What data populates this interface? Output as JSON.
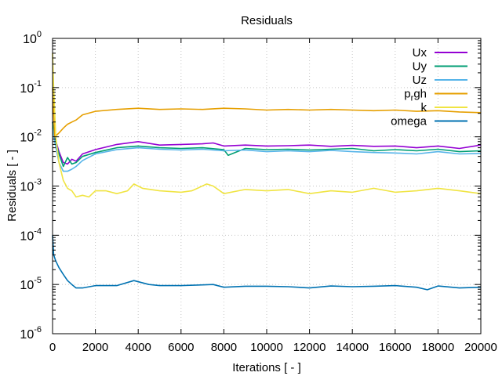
{
  "chart_data": {
    "type": "line",
    "title": "Residuals",
    "xlabel": "Iterations [ - ]",
    "ylabel": "Residuals [ - ]",
    "xlim": [
      0,
      20000
    ],
    "ylim": [
      1e-06,
      1
    ],
    "yscale": "log",
    "grid": true,
    "legend_position": "top-right",
    "x_ticks": [
      0,
      2000,
      4000,
      6000,
      8000,
      10000,
      12000,
      14000,
      16000,
      18000,
      20000
    ],
    "y_ticks": [
      {
        "base": "10",
        "exp": "-6",
        "value": 1e-06
      },
      {
        "base": "10",
        "exp": "-5",
        "value": 1e-05
      },
      {
        "base": "10",
        "exp": "-4",
        "value": 0.0001
      },
      {
        "base": "10",
        "exp": "-3",
        "value": 0.001
      },
      {
        "base": "10",
        "exp": "-2",
        "value": 0.01
      },
      {
        "base": "10",
        "exp": "-1",
        "value": 0.1
      },
      {
        "base": "10",
        "exp": "0",
        "value": 1
      }
    ],
    "series": [
      {
        "name": "Ux",
        "color": "#9400d3",
        "x": [
          0,
          100,
          300,
          500,
          700,
          900,
          1100,
          1400,
          2000,
          3000,
          4000,
          5000,
          6000,
          7000,
          7500,
          8000,
          9000,
          10000,
          11000,
          12000,
          13000,
          14000,
          15000,
          16000,
          17000,
          18000,
          19000,
          20000
        ],
        "y": [
          0.02,
          0.01,
          0.005,
          0.003,
          0.0028,
          0.0035,
          0.0032,
          0.0045,
          0.0055,
          0.007,
          0.008,
          0.0068,
          0.007,
          0.0072,
          0.0075,
          0.0065,
          0.0068,
          0.0065,
          0.0066,
          0.0068,
          0.0064,
          0.0067,
          0.0064,
          0.0065,
          0.006,
          0.0065,
          0.0058,
          0.0068
        ]
      },
      {
        "name": "Uy",
        "color": "#009e73",
        "x": [
          0,
          100,
          300,
          500,
          700,
          900,
          1100,
          1400,
          2000,
          3000,
          4000,
          5000,
          6000,
          7000,
          8000,
          8200,
          9000,
          10000,
          11000,
          12000,
          13000,
          14000,
          15000,
          16000,
          17000,
          18000,
          19000,
          20000
        ],
        "y": [
          0.02,
          0.009,
          0.0045,
          0.0025,
          0.0038,
          0.0028,
          0.003,
          0.004,
          0.0048,
          0.006,
          0.0065,
          0.006,
          0.0058,
          0.006,
          0.0055,
          0.0042,
          0.0058,
          0.0055,
          0.0056,
          0.0054,
          0.0056,
          0.0058,
          0.0052,
          0.0055,
          0.0052,
          0.0056,
          0.005,
          0.0052
        ]
      },
      {
        "name": "Uz",
        "color": "#56b4e9",
        "x": [
          0,
          100,
          300,
          500,
          700,
          900,
          1100,
          1400,
          2000,
          3000,
          4000,
          5000,
          6000,
          7000,
          8000,
          9000,
          10000,
          11000,
          12000,
          13000,
          14000,
          15000,
          16000,
          17000,
          18000,
          19000,
          20000
        ],
        "y": [
          0.015,
          0.008,
          0.003,
          0.002,
          0.002,
          0.0022,
          0.0025,
          0.0033,
          0.0045,
          0.0055,
          0.006,
          0.0056,
          0.0054,
          0.0056,
          0.0052,
          0.0054,
          0.005,
          0.0052,
          0.005,
          0.0053,
          0.005,
          0.0048,
          0.0047,
          0.0045,
          0.005,
          0.0045,
          0.0046
        ]
      },
      {
        "name": "p_rgh",
        "color": "#e69f00",
        "x": [
          0,
          100,
          300,
          500,
          700,
          900,
          1100,
          1400,
          2000,
          3000,
          4000,
          5000,
          6000,
          7000,
          8000,
          9000,
          10000,
          11000,
          12000,
          13000,
          14000,
          15000,
          16000,
          17000,
          18000,
          19000,
          20000
        ],
        "y": [
          0.1,
          0.01,
          0.012,
          0.015,
          0.018,
          0.02,
          0.022,
          0.028,
          0.033,
          0.036,
          0.038,
          0.036,
          0.037,
          0.036,
          0.038,
          0.037,
          0.035,
          0.036,
          0.035,
          0.036,
          0.035,
          0.034,
          0.035,
          0.033,
          0.034,
          0.032,
          0.031
        ]
      },
      {
        "name": "k",
        "color": "#f0e442",
        "x": [
          0,
          50,
          150,
          300,
          500,
          700,
          900,
          1100,
          1400,
          1700,
          2000,
          2500,
          3000,
          3500,
          3800,
          4200,
          5000,
          6000,
          6500,
          7200,
          7500,
          8000,
          9000,
          10000,
          11000,
          12000,
          13000,
          14000,
          15000,
          16000,
          17000,
          18000,
          19000,
          20000
        ],
        "y": [
          0.5,
          0.1,
          0.01,
          0.003,
          0.0013,
          0.0009,
          0.0008,
          0.0006,
          0.00065,
          0.0006,
          0.0008,
          0.0008,
          0.0007,
          0.0008,
          0.0011,
          0.0009,
          0.0008,
          0.00075,
          0.0008,
          0.0011,
          0.001,
          0.0007,
          0.00085,
          0.0008,
          0.00085,
          0.0007,
          0.0008,
          0.00075,
          0.0009,
          0.00075,
          0.0008,
          0.0009,
          0.0008,
          0.0007
        ]
      },
      {
        "name": "omega",
        "color": "#0072b2",
        "x": [
          0,
          50,
          150,
          300,
          500,
          700,
          900,
          1100,
          1400,
          2000,
          2500,
          3000,
          3800,
          4500,
          5000,
          6000,
          7000,
          7500,
          8000,
          9000,
          10000,
          11000,
          12000,
          13000,
          14000,
          15000,
          16000,
          17000,
          17500,
          18000,
          19000,
          20000
        ],
        "y": [
          0.0001,
          4e-05,
          3e-05,
          2.2e-05,
          1.6e-05,
          1.2e-05,
          1e-05,
          8.5e-06,
          8.5e-06,
          9.5e-06,
          9.5e-06,
          9.5e-06,
          1.2e-05,
          1e-05,
          9.5e-06,
          9.5e-06,
          9.8e-06,
          1e-05,
          8.8e-06,
          9.2e-06,
          9.2e-06,
          9e-06,
          8.5e-06,
          9.3e-06,
          9e-06,
          9.2e-06,
          9.5e-06,
          8.8e-06,
          7.8e-06,
          9.3e-06,
          8.5e-06,
          8.8e-06
        ]
      }
    ]
  }
}
